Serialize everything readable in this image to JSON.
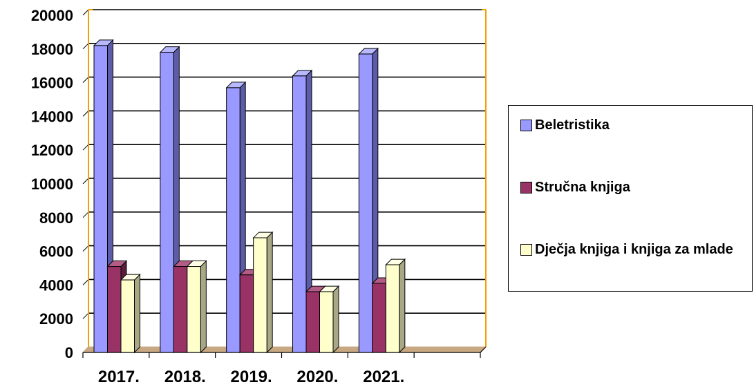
{
  "chart_data": {
    "type": "bar",
    "categories": [
      "2017.",
      "2018.",
      "2019.",
      "2020.",
      "2021."
    ],
    "series": [
      {
        "name": "Beletristika",
        "values": [
          18200,
          17800,
          15700,
          16400,
          17700
        ]
      },
      {
        "name": "Stručna knjiga",
        "values": [
          5100,
          5100,
          4600,
          3600,
          4100
        ]
      },
      {
        "name": "Dječja knjiga i knjiga za mlade",
        "values": [
          4300,
          5100,
          6800,
          3600,
          5200
        ]
      }
    ],
    "ylim": [
      0,
      20000
    ],
    "yticks": [
      "0",
      "2000",
      "4000",
      "6000",
      "8000",
      "10000",
      "12000",
      "14000",
      "16000",
      "18000",
      "20000"
    ],
    "grid": true,
    "legend_position": "right"
  },
  "colors": {
    "series": [
      "#9999ff",
      "#993366",
      "#ffffcc"
    ],
    "series_side": [
      "#5c5ca8",
      "#5a1e3c",
      "#a8a886"
    ],
    "series_top": [
      "#b8b8ff",
      "#b35c85",
      "#ffffe6"
    ],
    "plot_border": "#f2a000",
    "floor": "#c8a882",
    "grid": "#000000"
  }
}
